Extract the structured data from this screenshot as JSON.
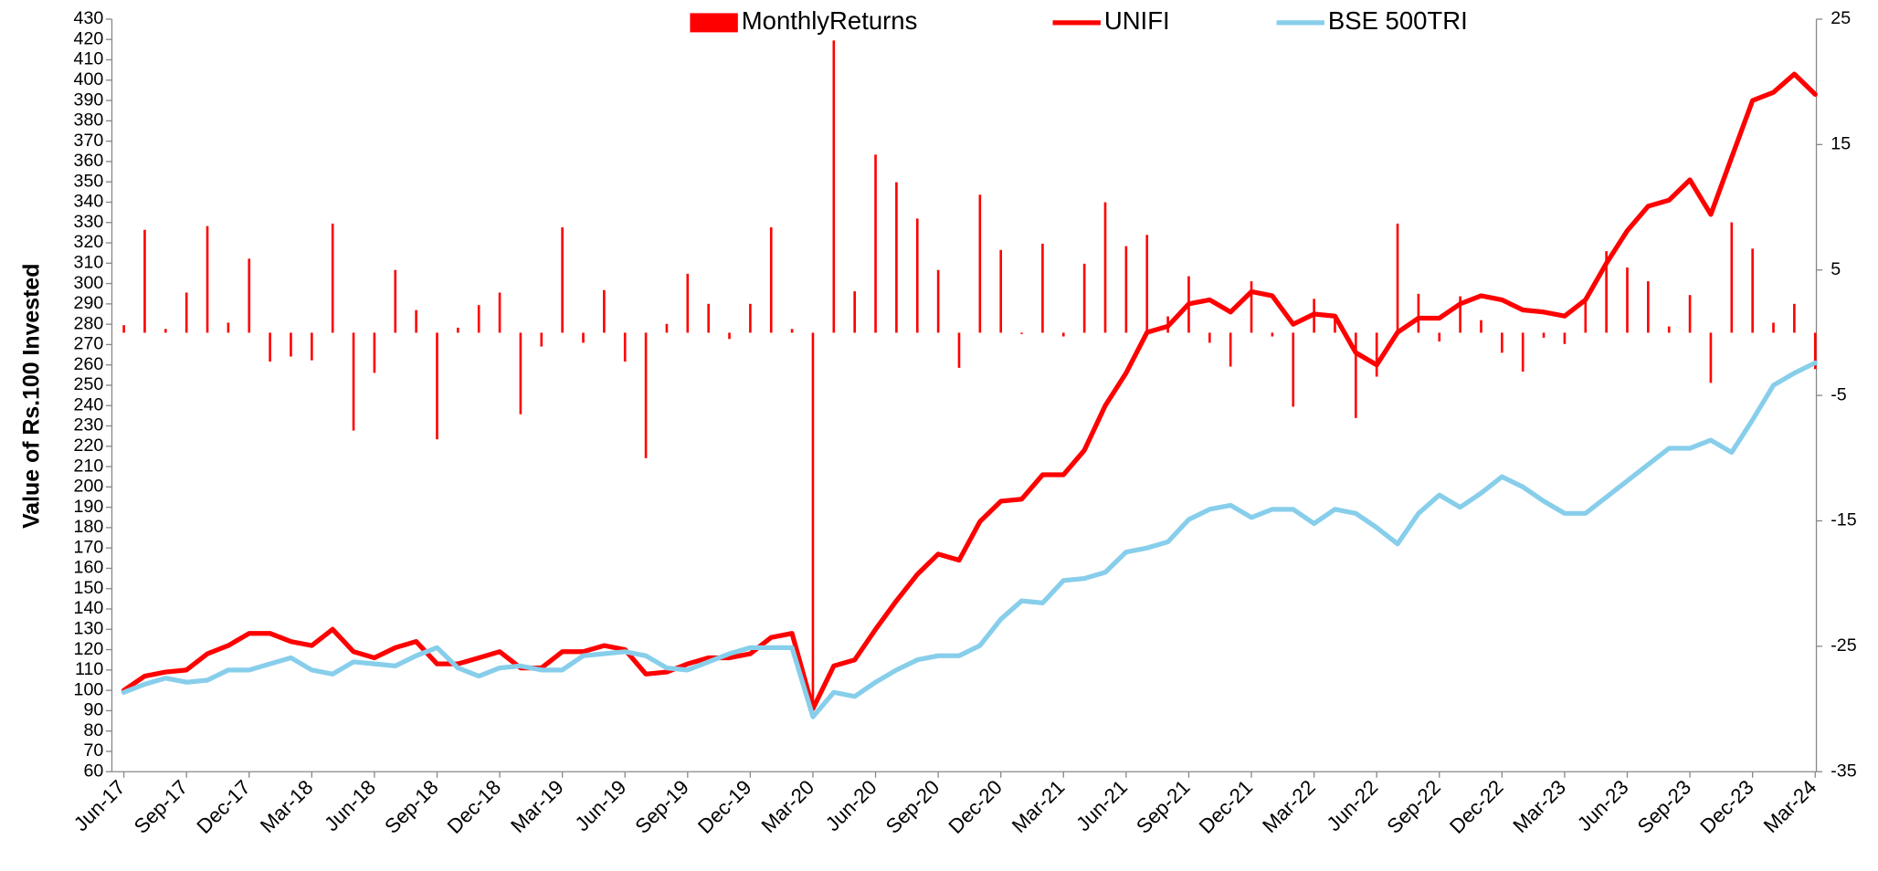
{
  "chart_data": {
    "type": "line",
    "y_label": "Value of Rs.100 Invested",
    "categories": [
      "Jun-17",
      null,
      null,
      "Sep-17",
      null,
      null,
      "Dec-17",
      null,
      null,
      "Mar-18",
      null,
      null,
      "Jun-18",
      null,
      null,
      "Sep-18",
      null,
      null,
      "Dec-18",
      null,
      null,
      "Mar-19",
      null,
      null,
      "Jun-19",
      null,
      null,
      "Sep-19",
      null,
      null,
      "Dec-19",
      null,
      null,
      "Mar-20",
      null,
      null,
      "Jun-20",
      null,
      null,
      "Sep-20",
      null,
      null,
      "Dec-20",
      null,
      null,
      "Mar-21",
      null,
      null,
      "Jun-21",
      null,
      null,
      "Sep-21",
      null,
      null,
      "Dec-21",
      null,
      null,
      "Mar-22",
      null,
      null,
      "Jun-22",
      null,
      null,
      "Sep-22",
      null,
      null,
      "Dec-22",
      null,
      null,
      "Mar-23",
      null,
      null,
      "Jun-23",
      null,
      null,
      "Sep-23",
      null,
      null,
      "Dec-23",
      null,
      null,
      "Mar-24"
    ],
    "series": [
      {
        "name": "MonthlyReturns",
        "type": "bar",
        "axis": "y2",
        "color": "#ff0000",
        "values": [
          0.6,
          8.2,
          0.3,
          3.2,
          8.5,
          0.8,
          5.9,
          -2.3,
          -1.9,
          -2.2,
          8.7,
          -7.8,
          -3.2,
          5,
          1.8,
          -8.5,
          0.4,
          2.2,
          3.2,
          -6.5,
          -1.1,
          8.4,
          -0.8,
          3.4,
          -2.3,
          -10,
          0.7,
          4.7,
          2.3,
          -0.5,
          2.3,
          8.4,
          0.3,
          -30,
          23.3,
          3.3,
          14.2,
          12,
          9.1,
          5,
          -2.8,
          11,
          6.6,
          -0.1,
          7.1,
          -0.3,
          5.5,
          10.4,
          6.9,
          7.8,
          1.3,
          4.5,
          -0.8,
          -2.7,
          4.1,
          -0.3,
          -5.9,
          2.7,
          1.3,
          -6.8,
          -3.5,
          8.7,
          3.1,
          -0.7,
          2.9,
          1,
          -1.6,
          -3.1,
          -0.4,
          -0.9,
          2.7,
          6.5,
          5.2,
          4.1,
          0.5,
          3,
          -4,
          8.8,
          6.7,
          0.8,
          2.3,
          -2.9
        ]
      },
      {
        "name": "UNIFI",
        "type": "line",
        "color": "#ff0000",
        "values": [
          100,
          107,
          109,
          110,
          118,
          122,
          128,
          128,
          124,
          122,
          130,
          119,
          116,
          121,
          124,
          113,
          113,
          116,
          119,
          111,
          111,
          119,
          119,
          122,
          120,
          108,
          109,
          113,
          116,
          116,
          118,
          126,
          128,
          91,
          112,
          115,
          130,
          144,
          157,
          167,
          164,
          183,
          193,
          194,
          206,
          206,
          218,
          240,
          256,
          276,
          279,
          290,
          292,
          286,
          296,
          294,
          280,
          285,
          284,
          266,
          260,
          276,
          283,
          283,
          290,
          294,
          292,
          287,
          286,
          284,
          292,
          310,
          326,
          338,
          341,
          351,
          334,
          362,
          390,
          394,
          403,
          393
        ]
      },
      {
        "name": "BSE 500TRI",
        "type": "line",
        "color": "#87ceeb",
        "values": [
          99,
          103,
          106,
          104,
          105,
          110,
          110,
          113,
          116,
          110,
          108,
          114,
          113,
          112,
          117,
          121,
          111,
          107,
          111,
          112,
          110,
          110,
          117,
          118,
          119,
          117,
          111,
          110,
          114,
          118,
          121,
          121,
          121,
          87,
          99,
          97,
          104,
          110,
          115,
          117,
          117,
          122,
          135,
          144,
          143,
          154,
          155,
          158,
          168,
          170,
          173,
          184,
          189,
          191,
          185,
          189,
          189,
          182,
          189,
          187,
          180,
          172,
          187,
          196,
          190,
          197,
          205,
          200,
          193,
          187,
          187,
          195,
          203,
          211,
          219,
          219,
          223,
          217,
          233,
          250,
          256,
          261
        ]
      }
    ],
    "ylim": [
      60,
      430
    ],
    "yticks": [
      60,
      70,
      80,
      90,
      100,
      110,
      120,
      130,
      140,
      150,
      160,
      170,
      180,
      190,
      200,
      210,
      220,
      230,
      240,
      250,
      260,
      270,
      280,
      290,
      300,
      310,
      320,
      330,
      340,
      350,
      360,
      370,
      380,
      390,
      400,
      410,
      420,
      430
    ],
    "y2lim": [
      -35,
      25
    ],
    "y2ticks": [
      -35,
      -25,
      -15,
      -5,
      5,
      15,
      25
    ],
    "legend": "top"
  }
}
